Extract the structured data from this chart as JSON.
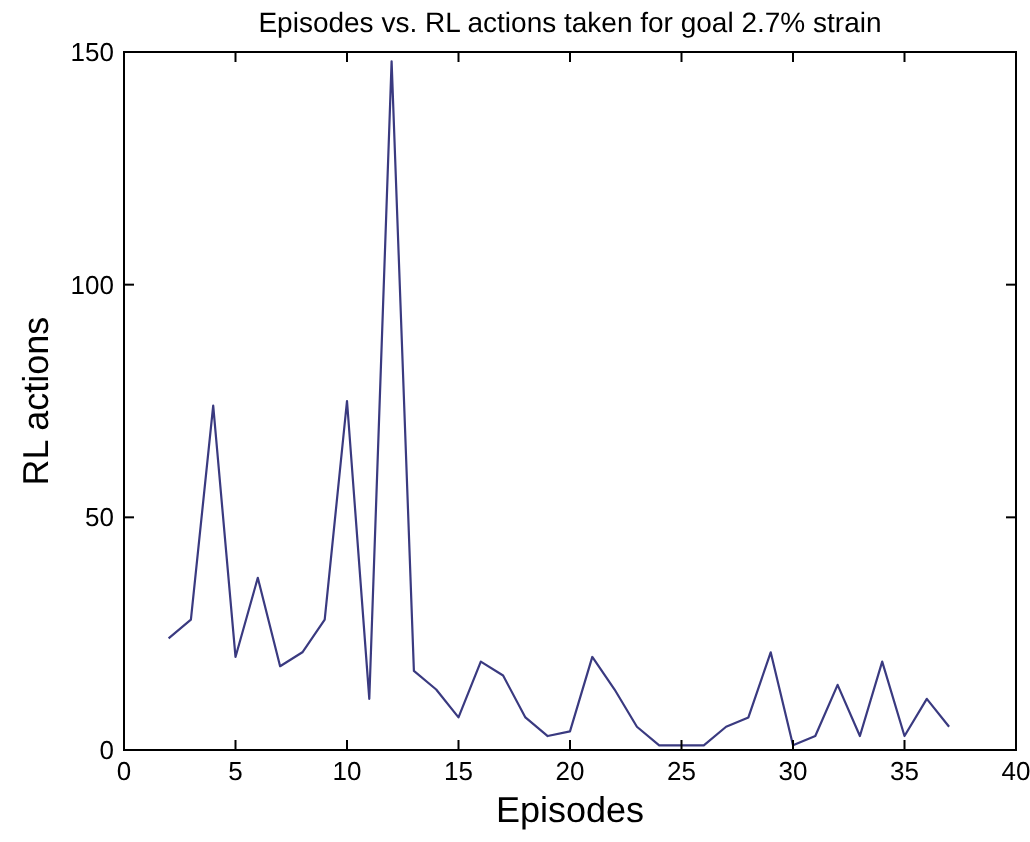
{
  "chart_data": {
    "type": "line",
    "title": "Episodes vs. RL actions  taken for goal 2.7% strain",
    "xlabel": "Episodes",
    "ylabel": "RL actions",
    "x": [
      2,
      3,
      4,
      5,
      6,
      7,
      8,
      9,
      10,
      11,
      12,
      13,
      14,
      15,
      16,
      17,
      18,
      19,
      20,
      21,
      22,
      23,
      24,
      25,
      26,
      27,
      28,
      29,
      30,
      31,
      32,
      33,
      34,
      35,
      36,
      37
    ],
    "series": [
      {
        "color": "#3a3a80",
        "values": [
          24,
          28,
          74,
          20,
          37,
          18,
          21,
          28,
          75,
          11,
          148,
          17,
          13,
          7,
          19,
          16,
          7,
          3,
          4,
          20,
          13,
          5,
          1,
          1,
          1,
          5,
          7,
          21,
          1,
          3,
          14,
          3,
          19,
          3,
          11,
          5
        ]
      }
    ],
    "xlim": [
      0,
      40
    ],
    "xticks": [
      0,
      5,
      10,
      15,
      20,
      25,
      30,
      35,
      40
    ],
    "ylim": [
      0,
      150
    ],
    "yticks": [
      0,
      50,
      100,
      150
    ],
    "grid": false,
    "marker": "none",
    "line_style": "solid"
  }
}
